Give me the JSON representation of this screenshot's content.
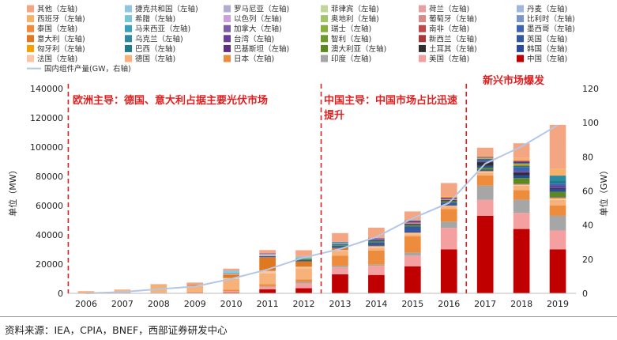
{
  "chart_data": {
    "type": "bar",
    "categories": [
      "2006",
      "2007",
      "2008",
      "2009",
      "2010",
      "2011",
      "2012",
      "2013",
      "2014",
      "2015",
      "2016",
      "2017",
      "2018",
      "2019"
    ],
    "ylabel": "单位（MW）",
    "y2label": "单位（GW）",
    "ylim": [
      0,
      140000
    ],
    "y2lim": [
      0,
      120
    ],
    "yticks": [
      "0",
      "20000",
      "40000",
      "60000",
      "80000",
      "100000",
      "120000",
      "140000"
    ],
    "y2ticks": [
      "0",
      "20",
      "40",
      "60",
      "80",
      "100",
      "120"
    ],
    "legend_position": "top",
    "legend": [
      {
        "name": "其他（左轴)",
        "color": "#f4a582"
      },
      {
        "name": "捷克共和国（左轴)",
        "color": "#92c5de"
      },
      {
        "name": "罗马尼亚（左轴)",
        "color": "#b2abd2"
      },
      {
        "name": "菲律宾（左轴)",
        "color": "#c2d69b"
      },
      {
        "name": "荷兰（左轴)",
        "color": "#e6a0a0"
      },
      {
        "name": "丹麦（左轴)",
        "color": "#9fb6dd"
      },
      {
        "name": "西班牙（左轴)",
        "color": "#f6b26b"
      },
      {
        "name": "希腊（左轴)",
        "color": "#76c7d6"
      },
      {
        "name": "以色列（左轴)",
        "color": "#c9a0dc"
      },
      {
        "name": "奥地利（左轴)",
        "color": "#a4c46c"
      },
      {
        "name": "葡萄牙（左轴)",
        "color": "#d98a8a"
      },
      {
        "name": "比利时（左轴)",
        "color": "#7a96c8"
      },
      {
        "name": "泰国（左轴)",
        "color": "#f08a3c"
      },
      {
        "name": "马来西亚（左轴)",
        "color": "#3aa0b8"
      },
      {
        "name": "加拿大（左轴)",
        "color": "#7e5aa8"
      },
      {
        "name": "瑞士（左轴)",
        "color": "#8aae3c"
      },
      {
        "name": "南非（左轴)",
        "color": "#c04848"
      },
      {
        "name": "墨西哥（左轴)",
        "color": "#3c64b0"
      },
      {
        "name": "意大利（左轴)",
        "color": "#e07820"
      },
      {
        "name": "乌克兰（左轴)",
        "color": "#2d8aa0"
      },
      {
        "name": "台湾（左轴)",
        "color": "#6a3d9a"
      },
      {
        "name": "智利（左轴)",
        "color": "#6e9a2a"
      },
      {
        "name": "新西兰（左轴)",
        "color": "#a83838"
      },
      {
        "name": "英国（左轴)",
        "color": "#3458a0"
      },
      {
        "name": "匈牙利（左轴)",
        "color": "#f5a000"
      },
      {
        "name": "巴西（左轴)",
        "color": "#1f7a8c"
      },
      {
        "name": "巴基斯坦（左轴)",
        "color": "#5e2c82"
      },
      {
        "name": "澳大利亚（左轴)",
        "color": "#5a8a1e"
      },
      {
        "name": "土耳其（左轴)",
        "color": "#2e2e2e"
      },
      {
        "name": "韩国（左轴)",
        "color": "#2a4a9a"
      },
      {
        "name": "法国（左轴)",
        "color": "#f9c6a8"
      },
      {
        "name": "德国（左轴)",
        "color": "#f7b27a"
      },
      {
        "name": "日本（左轴)",
        "color": "#ed8c3c"
      },
      {
        "name": "印度（左轴)",
        "color": "#a6a6a6"
      },
      {
        "name": "美国（左轴)",
        "color": "#f4a0a0"
      },
      {
        "name": "中国（左轴)",
        "color": "#c00000"
      }
    ],
    "line_legend": "国内组件产量(GW，右轴)",
    "line_color": "#b4c7e7",
    "line_values": [
      0,
      0.8,
      2.5,
      4,
      8.5,
      14,
      21,
      26,
      33,
      44,
      53,
      76,
      86,
      98.6
    ],
    "stacks": [
      [
        {
          "c": "#c00000",
          "v": 60
        },
        {
          "c": "#f4a0a0",
          "v": 60
        },
        {
          "c": "#a6a6a6",
          "v": 10
        },
        {
          "c": "#ed8c3c",
          "v": 280
        },
        {
          "c": "#f7b27a",
          "v": 840
        },
        {
          "c": "#f9c6a8",
          "v": 10
        },
        {
          "c": "#f6b26b",
          "v": 90
        },
        {
          "c": "#e07820",
          "v": 10
        },
        {
          "c": "#f4a582",
          "v": 200
        }
      ],
      [
        {
          "c": "#c00000",
          "v": 50
        },
        {
          "c": "#f4a0a0",
          "v": 200
        },
        {
          "c": "#a6a6a6",
          "v": 10
        },
        {
          "c": "#ed8c3c",
          "v": 210
        },
        {
          "c": "#f7b27a",
          "v": 1270
        },
        {
          "c": "#f9c6a8",
          "v": 10
        },
        {
          "c": "#e07820",
          "v": 70
        },
        {
          "c": "#f6b26b",
          "v": 560
        },
        {
          "c": "#f4a582",
          "v": 250
        }
      ],
      [
        {
          "c": "#c00000",
          "v": 45
        },
        {
          "c": "#f4a0a0",
          "v": 340
        },
        {
          "c": "#a6a6a6",
          "v": 20
        },
        {
          "c": "#ed8c3c",
          "v": 230
        },
        {
          "c": "#f7b27a",
          "v": 1950
        },
        {
          "c": "#f9c6a8",
          "v": 50
        },
        {
          "c": "#e07820",
          "v": 340
        },
        {
          "c": "#f6b26b",
          "v": 2700
        },
        {
          "c": "#f4a582",
          "v": 600
        }
      ],
      [
        {
          "c": "#c00000",
          "v": 160
        },
        {
          "c": "#f4a0a0",
          "v": 470
        },
        {
          "c": "#a6a6a6",
          "v": 30
        },
        {
          "c": "#ed8c3c",
          "v": 480
        },
        {
          "c": "#f7b27a",
          "v": 3800
        },
        {
          "c": "#f9c6a8",
          "v": 220
        },
        {
          "c": "#e07820",
          "v": 720
        },
        {
          "c": "#f6b26b",
          "v": 20
        },
        {
          "c": "#e6a0a0",
          "v": 300
        },
        {
          "c": "#f4a582",
          "v": 1200
        }
      ],
      [
        {
          "c": "#c00000",
          "v": 520
        },
        {
          "c": "#f4a0a0",
          "v": 850
        },
        {
          "c": "#a6a6a6",
          "v": 60
        },
        {
          "c": "#ed8c3c",
          "v": 990
        },
        {
          "c": "#f7b27a",
          "v": 7400
        },
        {
          "c": "#f9c6a8",
          "v": 720
        },
        {
          "c": "#e07820",
          "v": 2300
        },
        {
          "c": "#f6b26b",
          "v": 400
        },
        {
          "c": "#9fb6dd",
          "v": 550
        },
        {
          "c": "#3aa0b8",
          "v": 400
        },
        {
          "c": "#92c5de",
          "v": 1500
        },
        {
          "c": "#f4a582",
          "v": 1200
        }
      ],
      [
        {
          "c": "#c00000",
          "v": 2700
        },
        {
          "c": "#f4a0a0",
          "v": 1900
        },
        {
          "c": "#a6a6a6",
          "v": 300
        },
        {
          "c": "#ed8c3c",
          "v": 1300
        },
        {
          "c": "#f7b27a",
          "v": 7500
        },
        {
          "c": "#f9c6a8",
          "v": 1700
        },
        {
          "c": "#e07820",
          "v": 9300
        },
        {
          "c": "#3458a0",
          "v": 800
        },
        {
          "c": "#f6b26b",
          "v": 400
        },
        {
          "c": "#9fb6dd",
          "v": 1000
        },
        {
          "c": "#7e5aa8",
          "v": 400
        },
        {
          "c": "#f4a582",
          "v": 2300
        }
      ],
      [
        {
          "c": "#c00000",
          "v": 3500
        },
        {
          "c": "#f4a0a0",
          "v": 3300
        },
        {
          "c": "#a6a6a6",
          "v": 1000
        },
        {
          "c": "#ed8c3c",
          "v": 1700
        },
        {
          "c": "#f7b27a",
          "v": 7600
        },
        {
          "c": "#f9c6a8",
          "v": 1100
        },
        {
          "c": "#e07820",
          "v": 3600
        },
        {
          "c": "#3458a0",
          "v": 900
        },
        {
          "c": "#5a8a1e",
          "v": 1000
        },
        {
          "c": "#76c7d6",
          "v": 900
        },
        {
          "c": "#f6b26b",
          "v": 300
        },
        {
          "c": "#9fb6dd",
          "v": 600
        },
        {
          "c": "#f4a582",
          "v": 4000
        }
      ],
      [
        {
          "c": "#c00000",
          "v": 13000
        },
        {
          "c": "#f4a0a0",
          "v": 4700
        },
        {
          "c": "#a6a6a6",
          "v": 1100
        },
        {
          "c": "#ed8c3c",
          "v": 6900
        },
        {
          "c": "#f7b27a",
          "v": 3300
        },
        {
          "c": "#f9c6a8",
          "v": 600
        },
        {
          "c": "#e07820",
          "v": 1400
        },
        {
          "c": "#3458a0",
          "v": 1500
        },
        {
          "c": "#5a8a1e",
          "v": 800
        },
        {
          "c": "#2a4a9a",
          "v": 500
        },
        {
          "c": "#76c7d6",
          "v": 1000
        },
        {
          "c": "#6a3d9a",
          "v": 400
        },
        {
          "c": "#f4a582",
          "v": 6000
        }
      ],
      [
        {
          "c": "#c00000",
          "v": 12600
        },
        {
          "c": "#f4a0a0",
          "v": 6200
        },
        {
          "c": "#a6a6a6",
          "v": 800
        },
        {
          "c": "#ed8c3c",
          "v": 9700
        },
        {
          "c": "#f7b27a",
          "v": 1900
        },
        {
          "c": "#f9c6a8",
          "v": 900
        },
        {
          "c": "#e07820",
          "v": 400
        },
        {
          "c": "#3458a0",
          "v": 2300
        },
        {
          "c": "#5a8a1e",
          "v": 900
        },
        {
          "c": "#2a4a9a",
          "v": 900
        },
        {
          "c": "#7e5aa8",
          "v": 600
        },
        {
          "c": "#6a3d9a",
          "v": 400
        },
        {
          "c": "#f4a582",
          "v": 7300
        }
      ],
      [
        {
          "c": "#c00000",
          "v": 18500
        },
        {
          "c": "#f4a0a0",
          "v": 7300
        },
        {
          "c": "#a6a6a6",
          "v": 2100
        },
        {
          "c": "#ed8c3c",
          "v": 11000
        },
        {
          "c": "#f7b27a",
          "v": 1500
        },
        {
          "c": "#f9c6a8",
          "v": 900
        },
        {
          "c": "#e07820",
          "v": 300
        },
        {
          "c": "#3458a0",
          "v": 4100
        },
        {
          "c": "#5a8a1e",
          "v": 900
        },
        {
          "c": "#2a4a9a",
          "v": 1000
        },
        {
          "c": "#f08a3c",
          "v": 800
        },
        {
          "c": "#6a3d9a",
          "v": 800
        },
        {
          "c": "#3c64b0",
          "v": 600
        },
        {
          "c": "#f4a582",
          "v": 6200
        }
      ],
      [
        {
          "c": "#c00000",
          "v": 30000
        },
        {
          "c": "#f4a0a0",
          "v": 14700
        },
        {
          "c": "#a6a6a6",
          "v": 4300
        },
        {
          "c": "#ed8c3c",
          "v": 8600
        },
        {
          "c": "#f7b27a",
          "v": 1500
        },
        {
          "c": "#f9c6a8",
          "v": 600
        },
        {
          "c": "#e07820",
          "v": 400
        },
        {
          "c": "#3458a0",
          "v": 2000
        },
        {
          "c": "#5a8a1e",
          "v": 900
        },
        {
          "c": "#2a4a9a",
          "v": 900
        },
        {
          "c": "#f08a3c",
          "v": 700
        },
        {
          "c": "#6a3d9a",
          "v": 900
        },
        {
          "c": "#f5a000",
          "v": 600
        },
        {
          "c": "#f4a582",
          "v": 9300
        }
      ],
      [
        {
          "c": "#c00000",
          "v": 53000
        },
        {
          "c": "#f4a0a0",
          "v": 11000
        },
        {
          "c": "#a6a6a6",
          "v": 9600
        },
        {
          "c": "#ed8c3c",
          "v": 7000
        },
        {
          "c": "#f7b27a",
          "v": 1800
        },
        {
          "c": "#f9c6a8",
          "v": 900
        },
        {
          "c": "#e07820",
          "v": 400
        },
        {
          "c": "#3458a0",
          "v": 900
        },
        {
          "c": "#5a8a1e",
          "v": 1300
        },
        {
          "c": "#2a4a9a",
          "v": 1200
        },
        {
          "c": "#2e2e2e",
          "v": 2600
        },
        {
          "c": "#6a3d9a",
          "v": 500
        },
        {
          "c": "#3c64b0",
          "v": 900
        },
        {
          "c": "#1f7a8c",
          "v": 900
        },
        {
          "c": "#f08a3c",
          "v": 500
        },
        {
          "c": "#7e5aa8",
          "v": 300
        },
        {
          "c": "#c04848",
          "v": 400
        },
        {
          "c": "#8aae3c",
          "v": 400
        },
        {
          "c": "#f4a582",
          "v": 6000
        }
      ],
      [
        {
          "c": "#c00000",
          "v": 44000
        },
        {
          "c": "#f4a0a0",
          "v": 11000
        },
        {
          "c": "#a6a6a6",
          "v": 9000
        },
        {
          "c": "#ed8c3c",
          "v": 6500
        },
        {
          "c": "#f7b27a",
          "v": 3000
        },
        {
          "c": "#f9c6a8",
          "v": 800
        },
        {
          "c": "#e07820",
          "v": 400
        },
        {
          "c": "#3458a0",
          "v": 300
        },
        {
          "c": "#5a8a1e",
          "v": 3800
        },
        {
          "c": "#2a4a9a",
          "v": 2000
        },
        {
          "c": "#2e2e2e",
          "v": 1600
        },
        {
          "c": "#6a3d9a",
          "v": 1000
        },
        {
          "c": "#3c64b0",
          "v": 2700
        },
        {
          "c": "#1f7a8c",
          "v": 1200
        },
        {
          "c": "#f5a000",
          "v": 1100
        },
        {
          "c": "#2d8aa0",
          "v": 800
        },
        {
          "c": "#5e2c82",
          "v": 900
        },
        {
          "c": "#a83838",
          "v": 500
        },
        {
          "c": "#f6b26b",
          "v": 2000
        },
        {
          "c": "#f4a582",
          "v": 10000
        }
      ],
      [
        {
          "c": "#c00000",
          "v": 30000
        },
        {
          "c": "#f4a0a0",
          "v": 13000
        },
        {
          "c": "#a6a6a6",
          "v": 10000
        },
        {
          "c": "#ed8c3c",
          "v": 7000
        },
        {
          "c": "#f7b27a",
          "v": 3900
        },
        {
          "c": "#f9c6a8",
          "v": 1000
        },
        {
          "c": "#e07820",
          "v": 700
        },
        {
          "c": "#3458a0",
          "v": 300
        },
        {
          "c": "#5a8a1e",
          "v": 3500
        },
        {
          "c": "#2a4a9a",
          "v": 2000
        },
        {
          "c": "#2e2e2e",
          "v": 600
        },
        {
          "c": "#6a3d9a",
          "v": 1500
        },
        {
          "c": "#3c64b0",
          "v": 1500
        },
        {
          "c": "#1f7a8c",
          "v": 2000
        },
        {
          "c": "#2d8aa0",
          "v": 3500
        },
        {
          "c": "#f6b26b",
          "v": 4700
        },
        {
          "c": "#f4a582",
          "v": 30000
        }
      ]
    ],
    "annotations": [
      "欧洲主导：德国、意大利占据主要光伏市场",
      "中国主导：中国市场占比迅速",
      "提升",
      "新兴市场爆发"
    ]
  },
  "source": "资料来源：IEA，CPIA，BNEF，西部证券研发中心"
}
